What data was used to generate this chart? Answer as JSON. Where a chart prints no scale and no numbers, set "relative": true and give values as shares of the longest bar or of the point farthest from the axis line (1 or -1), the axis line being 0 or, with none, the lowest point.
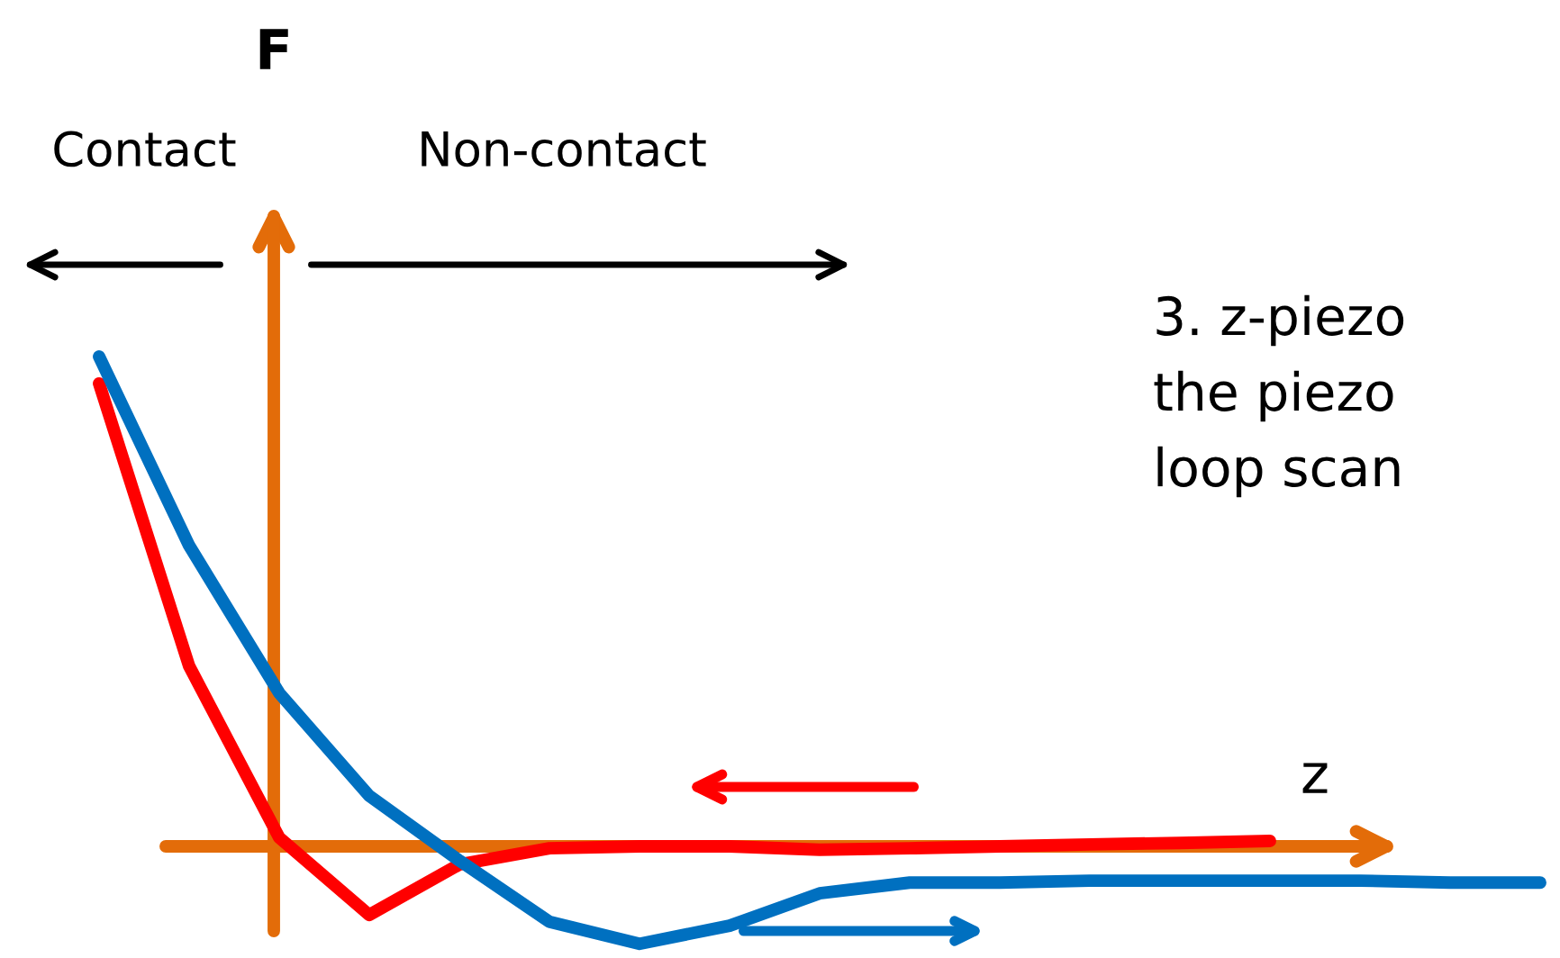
{
  "chart_data": {
    "type": "line",
    "relative": true,
    "xlabel": "z",
    "ref_lines": [
      {
        "axis": "y",
        "value": 0,
        "color": "#e36c09"
      }
    ],
    "annotations": [
      "F",
      "Contact",
      "Non-contact",
      "3. z-piezo",
      "the piezo",
      "loop scan"
    ],
    "categories": [
      null,
      null,
      null,
      null,
      null,
      null,
      null,
      null,
      null,
      null,
      null,
      null,
      null,
      null,
      null,
      null,
      null
    ],
    "series": [
      {
        "color": "#ff0000",
        "values": [
          0.945,
          0.368,
          0.018,
          -0.14,
          -0.037,
          -0.004,
          0,
          0,
          -0.007,
          -0.004,
          0,
          0.004,
          0.007,
          0.011,
          null,
          null,
          null
        ]
      },
      {
        "color": "#0070c0",
        "values": [
          1.0,
          0.614,
          0.313,
          0.103,
          -0.029,
          -0.154,
          -0.199,
          -0.162,
          -0.096,
          -0.074,
          -0.074,
          -0.07,
          -0.07,
          -0.07,
          -0.07,
          -0.074,
          -0.074
        ]
      }
    ],
    "marker": "none",
    "line_style": "solid"
  }
}
